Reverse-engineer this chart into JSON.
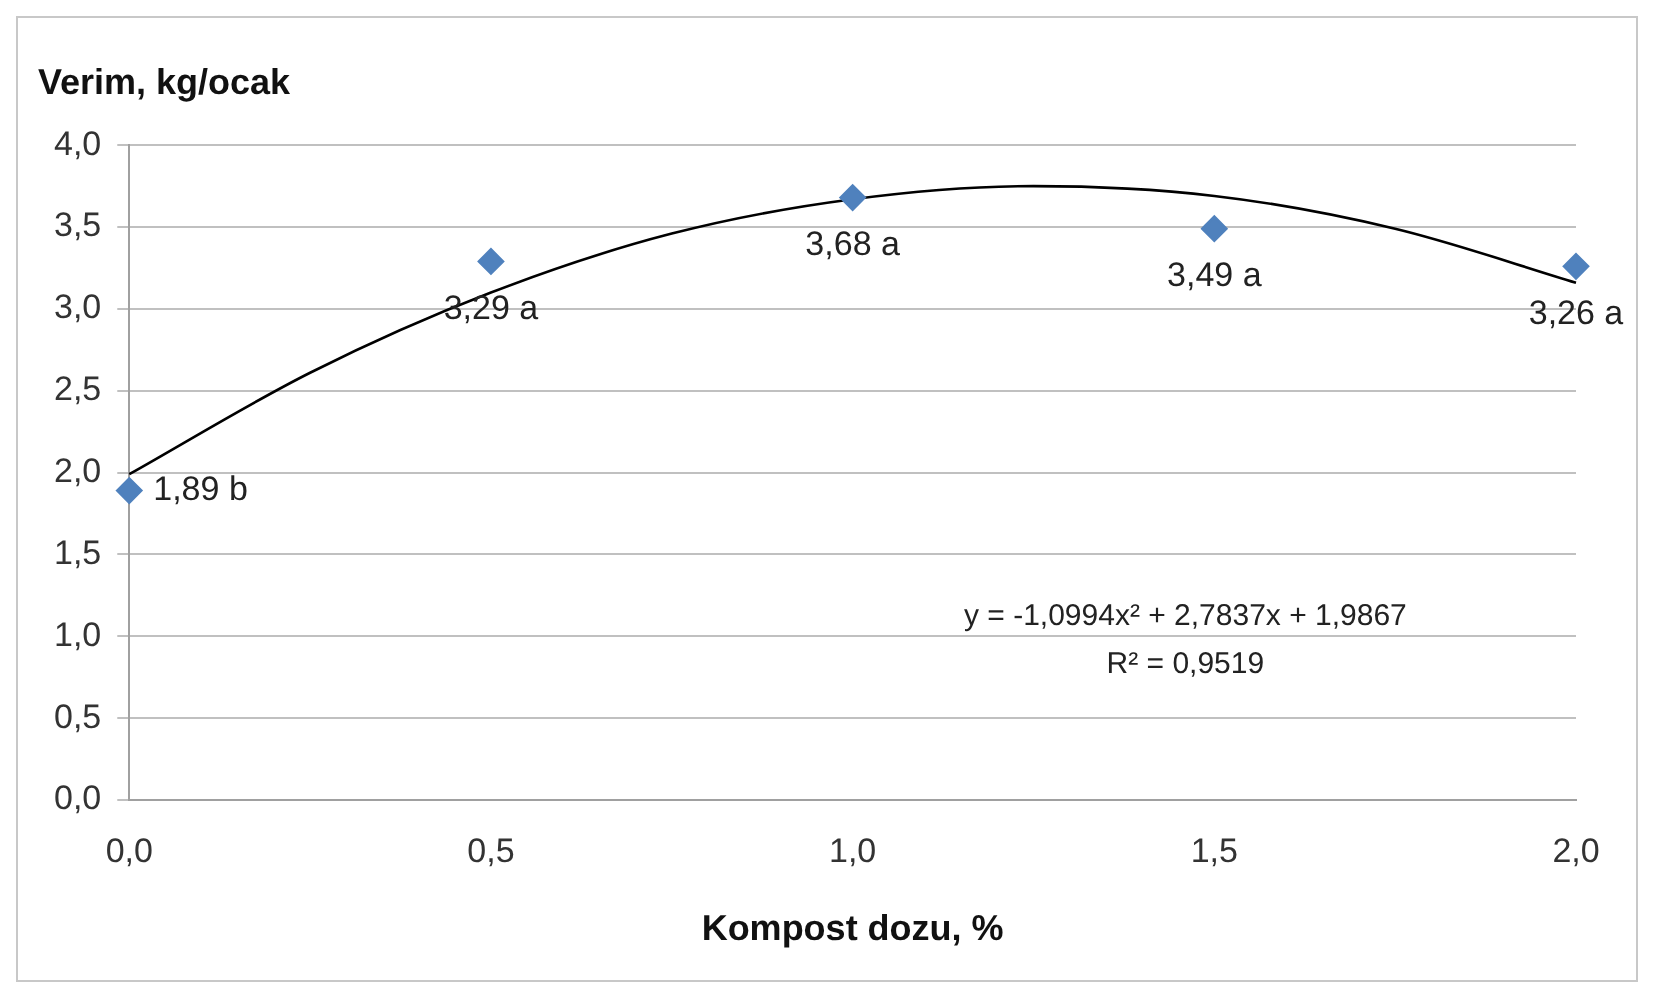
{
  "chart_data": {
    "type": "scatter",
    "ylabel": "Verim, kg/ocak",
    "xlabel": "Kompost dozu, %",
    "series": [
      {
        "color": "#4f81bd",
        "x": [
          0,
          0.5,
          1.0,
          1.5,
          2.0
        ],
        "values": [
          1.89,
          3.29,
          3.68,
          3.49,
          3.26
        ],
        "value_labels": [
          "1,89 b",
          "3,29 a",
          "3,68 a",
          "3,49 a",
          "3,26 a"
        ],
        "marker": "diamond"
      },
      {
        "type": "line",
        "color": "#000000",
        "x": [
          0,
          0.25,
          0.5,
          0.75,
          1.0,
          1.25,
          1.5,
          1.75,
          2.0
        ],
        "values": [
          1.99,
          2.61,
          3.1,
          3.46,
          3.67,
          3.75,
          3.69,
          3.49,
          3.16
        ],
        "marker": "none",
        "line_style": "solid"
      }
    ],
    "xlim": [
      0,
      2
    ],
    "xticks": [
      {
        "value": 0,
        "label": "0,0"
      },
      {
        "value": 0.5,
        "label": "0,5"
      },
      {
        "value": 1,
        "label": "1,0"
      },
      {
        "value": 1.5,
        "label": "1,5"
      },
      {
        "value": 2,
        "label": "2,0"
      }
    ],
    "ylim": [
      0,
      4
    ],
    "yticks": [
      {
        "value": 0,
        "label": "0,0"
      },
      {
        "value": 0.5,
        "label": "0,5"
      },
      {
        "value": 1,
        "label": "1,0"
      },
      {
        "value": 1.5,
        "label": "1,5"
      },
      {
        "value": 2,
        "label": "2,0"
      },
      {
        "value": 2.5,
        "label": "2,5"
      },
      {
        "value": 3,
        "label": "3,0"
      },
      {
        "value": 3.5,
        "label": "3,5"
      },
      {
        "value": 4,
        "label": "4,0"
      }
    ],
    "annotations": [
      "y = -1,0994x² + 2,7837x + 1,9867",
      "R² = 0,9519"
    ],
    "grid": "y",
    "legend": false
  }
}
